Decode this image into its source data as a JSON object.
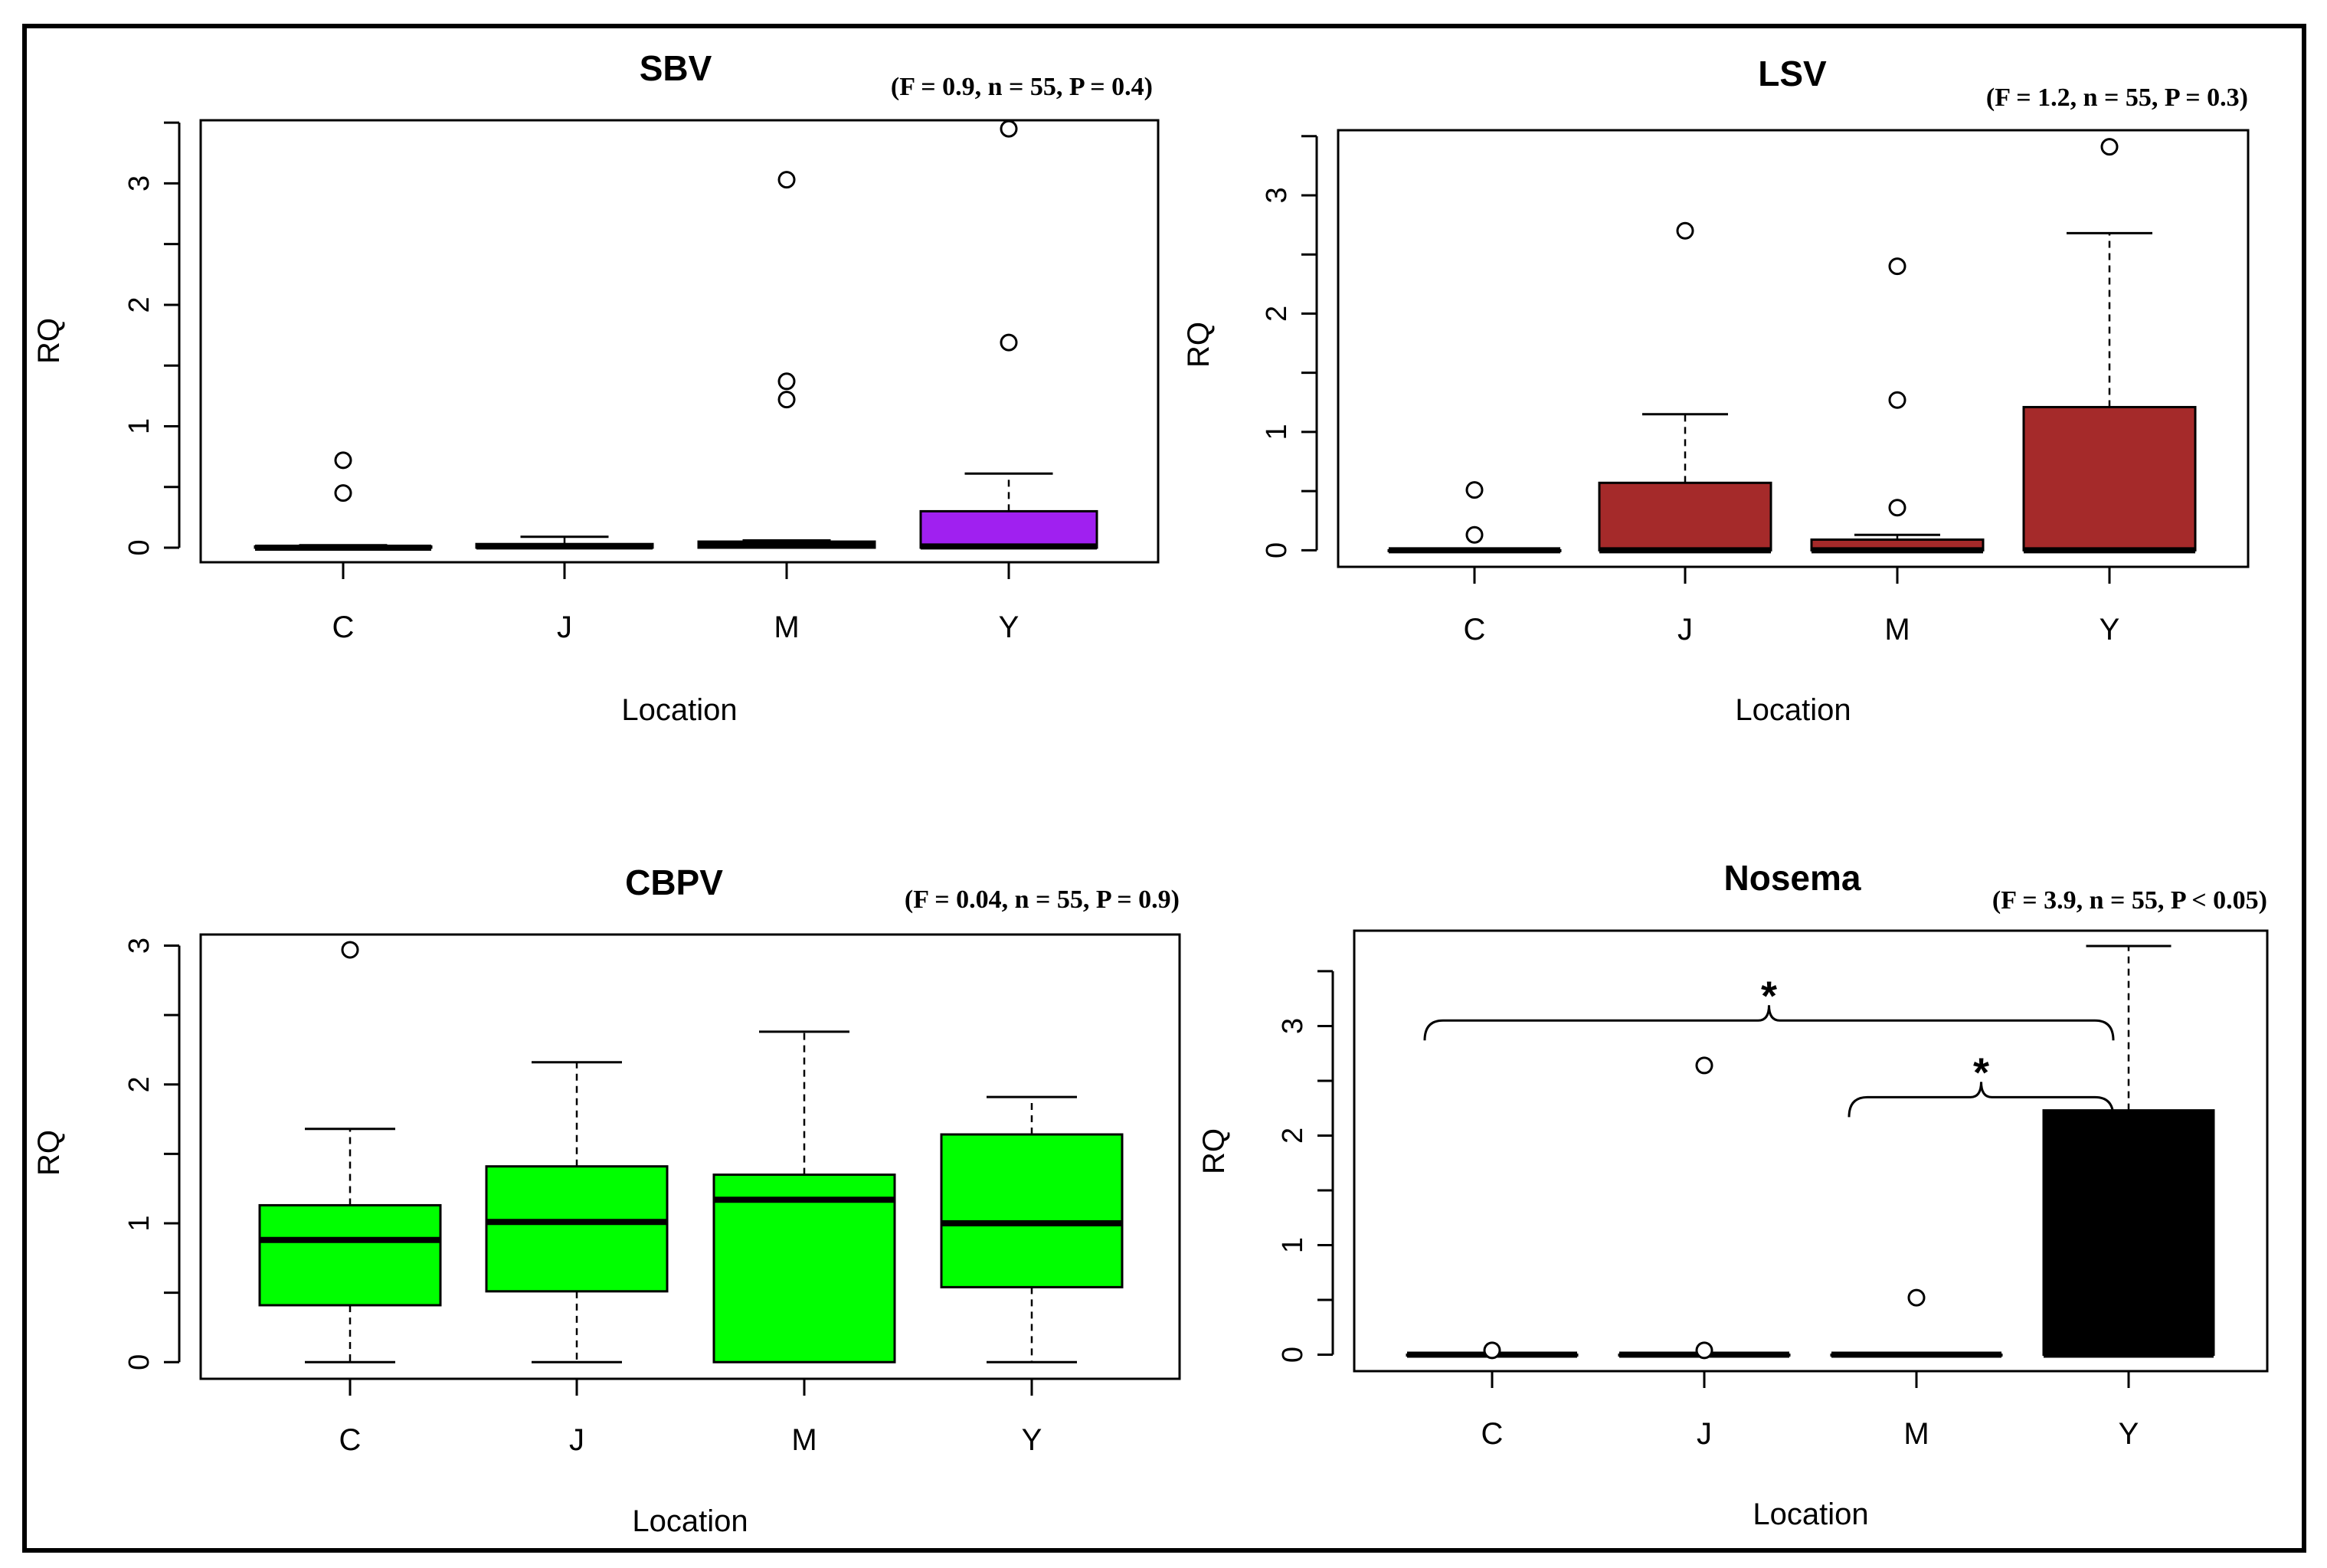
{
  "chart_data": [
    {
      "type": "box",
      "title": "SBV",
      "stats": "(F = 0.9, n = 55, P = 0.4)",
      "xlabel": "Location",
      "ylabel": "RQ",
      "categories": [
        "C",
        "J",
        "M",
        "Y"
      ],
      "yticks": [
        0,
        1,
        2,
        3
      ],
      "ylim": [
        -0.12,
        3.52
      ],
      "color": "#a020f0",
      "boxes": [
        {
          "lo": 0,
          "q1": 0,
          "med": 0,
          "q3": 0.01,
          "hi": 0.02,
          "outliers": [
            0.45,
            0.72
          ]
        },
        {
          "lo": 0,
          "q1": 0,
          "med": 0.01,
          "q3": 0.03,
          "hi": 0.09,
          "outliers": []
        },
        {
          "lo": 0,
          "q1": 0,
          "med": 0.02,
          "q3": 0.05,
          "hi": 0.06,
          "outliers": [
            1.22,
            1.37,
            3.03
          ]
        },
        {
          "lo": 0,
          "q1": 0,
          "med": 0.01,
          "q3": 0.3,
          "hi": 0.61,
          "outliers": [
            1.69,
            3.45
          ]
        }
      ]
    },
    {
      "type": "box",
      "title": "LSV",
      "stats": "(F = 1.2, n = 55, P = 0.3)",
      "xlabel": "Location",
      "ylabel": "RQ",
      "categories": [
        "C",
        "J",
        "M",
        "Y"
      ],
      "yticks": [
        0,
        1,
        2,
        3
      ],
      "ylim": [
        -0.14,
        3.55
      ],
      "color": "#a52a2a",
      "boxes": [
        {
          "lo": 0,
          "q1": 0,
          "med": 0,
          "q3": 0,
          "hi": 0,
          "outliers": [
            0.13,
            0.51
          ]
        },
        {
          "lo": 0,
          "q1": 0,
          "med": 0,
          "q3": 0.57,
          "hi": 1.15,
          "outliers": [
            2.7
          ]
        },
        {
          "lo": 0,
          "q1": 0,
          "med": 0,
          "q3": 0.09,
          "hi": 0.13,
          "outliers": [
            0.36,
            1.27,
            2.4
          ]
        },
        {
          "lo": 0,
          "q1": 0,
          "med": 0,
          "q3": 1.21,
          "hi": 2.68,
          "outliers": [
            3.41
          ]
        }
      ]
    },
    {
      "type": "box",
      "title": "CBPV",
      "stats": "(F = 0.04, n = 55, P = 0.9)",
      "xlabel": "Location",
      "ylabel": "RQ",
      "categories": [
        "C",
        "J",
        "M",
        "Y"
      ],
      "yticks": [
        0,
        1,
        2,
        3
      ],
      "ylim": [
        -0.12,
        3.08
      ],
      "color": "#00ff00",
      "boxes": [
        {
          "lo": 0,
          "q1": 0.41,
          "med": 0.88,
          "q3": 1.13,
          "hi": 1.68,
          "outliers": [
            2.97
          ]
        },
        {
          "lo": 0,
          "q1": 0.51,
          "med": 1.01,
          "q3": 1.41,
          "hi": 2.16,
          "outliers": []
        },
        {
          "lo": 0,
          "q1": 0,
          "med": 1.17,
          "q3": 1.35,
          "hi": 2.38,
          "outliers": []
        },
        {
          "lo": 0,
          "q1": 0.54,
          "med": 1.0,
          "q3": 1.64,
          "hi": 1.91,
          "outliers": []
        }
      ]
    },
    {
      "type": "box",
      "title": "Nosema",
      "stats": "(F = 3.9, n = 55, P < 0.05)",
      "xlabel": "Location",
      "ylabel": "RQ",
      "categories": [
        "C",
        "J",
        "M",
        "Y"
      ],
      "yticks": [
        0,
        1,
        2,
        3
      ],
      "ylim": [
        -0.15,
        3.87
      ],
      "color": "#000000",
      "boxes": [
        {
          "lo": 0,
          "q1": 0,
          "med": 0,
          "q3": 0,
          "hi": 0,
          "outliers": [
            0.04
          ]
        },
        {
          "lo": 0,
          "q1": 0,
          "med": 0,
          "q3": 0,
          "hi": 0,
          "outliers": [
            0.04,
            2.64
          ]
        },
        {
          "lo": 0,
          "q1": 0,
          "med": 0,
          "q3": 0,
          "hi": 0,
          "outliers": [
            0.52
          ]
        },
        {
          "lo": 0,
          "q1": 0,
          "med": 0,
          "q3": 2.23,
          "hi": 3.73,
          "outliers": []
        }
      ],
      "significance": [
        {
          "from": "C",
          "to": "Y",
          "label": "*",
          "y": 3.05
        },
        {
          "from": "M",
          "to": "Y",
          "label": "*",
          "y": 2.35
        }
      ]
    }
  ]
}
